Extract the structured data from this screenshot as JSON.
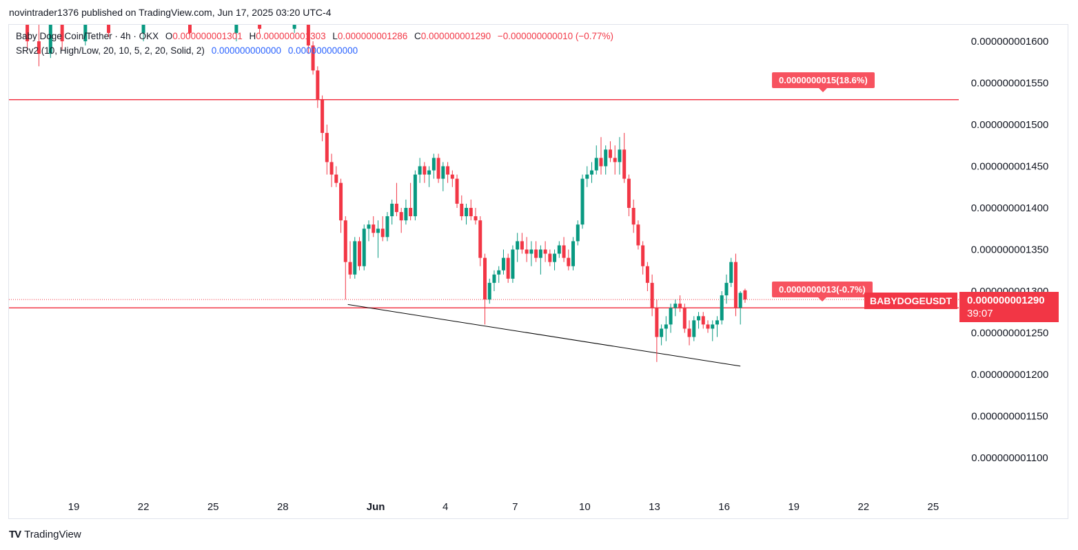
{
  "header": {
    "published_line": "novintrader1376 published on TradingView.com, Jun 17, 2025 03:20 UTC-4"
  },
  "legend": {
    "symbol_line": "Baby Doge Coin/Tether · 4h · OKX",
    "open_label": "O",
    "open_value": "0.000000001301",
    "high_label": "H",
    "high_value": "0.000000001303",
    "low_label": "L",
    "low_value": "0.000000001286",
    "close_label": "C",
    "close_value": "0.000000001290",
    "change": "−0.000000000010 (−0.77%)",
    "indicator_name": "SRv2 (10, High/Low, 20, 10, 5, 2, 20, Solid, 2)",
    "indicator_value_1": "0.000000000000",
    "indicator_value_2": "0.000000000000"
  },
  "labels": {
    "target_label": "0.0000000015(18.6%)",
    "current_label": "0.0000000013(-0.7%)",
    "symbol_tag": "BABYDOGEUSDT",
    "last_price": "0.000000001290",
    "countdown": "39:07"
  },
  "footer": {
    "brand": "TradingView"
  },
  "colors": {
    "up": "#089981",
    "down": "#f23645",
    "line": "#f23645",
    "trend": "#000000",
    "blue": "#2962ff"
  },
  "chart_data": {
    "type": "candlestick",
    "ylim": [
      1.07e-09,
      1.63e-09
    ],
    "y_ticks": [
      {
        "value": 1.6e-09,
        "label": "0.000000001600"
      },
      {
        "value": 1.55e-09,
        "label": "0.000000001550"
      },
      {
        "value": 1.5e-09,
        "label": "0.000000001500"
      },
      {
        "value": 1.45e-09,
        "label": "0.000000001450"
      },
      {
        "value": 1.4e-09,
        "label": "0.000000001400"
      },
      {
        "value": 1.35e-09,
        "label": "0.000000001350"
      },
      {
        "value": 1.3e-09,
        "label": "0.000000001300"
      },
      {
        "value": 1.25e-09,
        "label": "0.000000001250"
      },
      {
        "value": 1.2e-09,
        "label": "0.000000001200"
      },
      {
        "value": 1.15e-09,
        "label": "0.000000001150"
      },
      {
        "value": 1.1e-09,
        "label": "0.000000001100"
      }
    ],
    "x_ticks": [
      {
        "day": 19,
        "label": "19"
      },
      {
        "day": 22,
        "label": "22"
      },
      {
        "day": 25,
        "label": "25"
      },
      {
        "day": 28,
        "label": "28"
      },
      {
        "day": 32,
        "label": "Jun"
      },
      {
        "day": 35,
        "label": "4"
      },
      {
        "day": 38,
        "label": "7"
      },
      {
        "day": 41,
        "label": "10"
      },
      {
        "day": 44,
        "label": "13"
      },
      {
        "day": 47,
        "label": "16"
      },
      {
        "day": 50,
        "label": "19"
      },
      {
        "day": 53,
        "label": "22"
      },
      {
        "day": 56,
        "label": "25"
      }
    ],
    "xlim": [
      16.3,
      56.3
    ],
    "horizontal_lines": [
      {
        "name": "resistance",
        "value": 1.53e-09
      },
      {
        "name": "support",
        "value": 1.28e-09
      }
    ],
    "last_price_line": 1.29e-09,
    "trendline": {
      "start": {
        "day": 30.8,
        "value": 1.284e-09
      },
      "end": {
        "day": 47.7,
        "value": 1.21e-09
      }
    },
    "candles": [
      {
        "d": 17.0,
        "o": 1.625,
        "h": 1.63,
        "l": 1.59,
        "c": 1.6
      },
      {
        "d": 17.5,
        "o": 1.6,
        "h": 1.62,
        "l": 1.57,
        "c": 1.585
      },
      {
        "d": 18.0,
        "o": 1.585,
        "h": 1.63,
        "l": 1.58,
        "c": 1.62
      },
      {
        "d": 18.5,
        "o": 1.62,
        "h": 1.63,
        "l": 1.59,
        "c": 1.6
      },
      {
        "d": 19.5,
        "o": 1.6,
        "h": 1.63,
        "l": 1.595,
        "c": 1.625
      },
      {
        "d": 20.5,
        "o": 1.625,
        "h": 1.63,
        "l": 1.605,
        "c": 1.61
      },
      {
        "d": 22.0,
        "o": 1.61,
        "h": 1.63,
        "l": 1.6,
        "c": 1.62
      },
      {
        "d": 24.0,
        "o": 1.62,
        "h": 1.63,
        "l": 1.605,
        "c": 1.61
      },
      {
        "d": 26.0,
        "o": 1.61,
        "h": 1.63,
        "l": 1.6,
        "c": 1.625
      },
      {
        "d": 27.0,
        "o": 1.625,
        "h": 1.63,
        "l": 1.61,
        "c": 1.615
      },
      {
        "d": 28.5,
        "o": 1.615,
        "h": 1.63,
        "l": 1.61,
        "c": 1.625
      },
      {
        "d": 29.1,
        "o": 1.63,
        "h": 1.63,
        "l": 1.585,
        "c": 1.595
      },
      {
        "d": 29.3,
        "o": 1.595,
        "h": 1.6,
        "l": 1.56,
        "c": 1.565
      },
      {
        "d": 29.5,
        "o": 1.565,
        "h": 1.57,
        "l": 1.52,
        "c": 1.53
      },
      {
        "d": 29.7,
        "o": 1.53,
        "h": 1.535,
        "l": 1.48,
        "c": 1.49
      },
      {
        "d": 29.9,
        "o": 1.49,
        "h": 1.5,
        "l": 1.44,
        "c": 1.455
      },
      {
        "d": 30.1,
        "o": 1.455,
        "h": 1.465,
        "l": 1.425,
        "c": 1.44
      },
      {
        "d": 30.3,
        "o": 1.44,
        "h": 1.45,
        "l": 1.425,
        "c": 1.43
      },
      {
        "d": 30.5,
        "o": 1.43,
        "h": 1.435,
        "l": 1.37,
        "c": 1.385
      },
      {
        "d": 30.7,
        "o": 1.385,
        "h": 1.39,
        "l": 1.29,
        "c": 1.335
      },
      {
        "d": 30.9,
        "o": 1.335,
        "h": 1.36,
        "l": 1.315,
        "c": 1.32
      },
      {
        "d": 31.1,
        "o": 1.32,
        "h": 1.365,
        "l": 1.315,
        "c": 1.36
      },
      {
        "d": 31.3,
        "o": 1.36,
        "h": 1.365,
        "l": 1.325,
        "c": 1.33
      },
      {
        "d": 31.5,
        "o": 1.33,
        "h": 1.38,
        "l": 1.325,
        "c": 1.375
      },
      {
        "d": 31.7,
        "o": 1.375,
        "h": 1.385,
        "l": 1.36,
        "c": 1.38
      },
      {
        "d": 31.9,
        "o": 1.38,
        "h": 1.39,
        "l": 1.365,
        "c": 1.37
      },
      {
        "d": 32.1,
        "o": 1.37,
        "h": 1.385,
        "l": 1.34,
        "c": 1.375
      },
      {
        "d": 32.3,
        "o": 1.375,
        "h": 1.39,
        "l": 1.36,
        "c": 1.365
      },
      {
        "d": 32.5,
        "o": 1.365,
        "h": 1.395,
        "l": 1.36,
        "c": 1.39
      },
      {
        "d": 32.7,
        "o": 1.39,
        "h": 1.41,
        "l": 1.38,
        "c": 1.405
      },
      {
        "d": 32.9,
        "o": 1.405,
        "h": 1.43,
        "l": 1.39,
        "c": 1.395
      },
      {
        "d": 33.1,
        "o": 1.395,
        "h": 1.4,
        "l": 1.37,
        "c": 1.385
      },
      {
        "d": 33.3,
        "o": 1.385,
        "h": 1.41,
        "l": 1.38,
        "c": 1.4
      },
      {
        "d": 33.5,
        "o": 1.4,
        "h": 1.43,
        "l": 1.385,
        "c": 1.39
      },
      {
        "d": 33.7,
        "o": 1.39,
        "h": 1.445,
        "l": 1.385,
        "c": 1.44
      },
      {
        "d": 33.9,
        "o": 1.44,
        "h": 1.46,
        "l": 1.43,
        "c": 1.45
      },
      {
        "d": 34.1,
        "o": 1.45,
        "h": 1.455,
        "l": 1.43,
        "c": 1.44
      },
      {
        "d": 34.3,
        "o": 1.44,
        "h": 1.45,
        "l": 1.425,
        "c": 1.445
      },
      {
        "d": 34.5,
        "o": 1.445,
        "h": 1.465,
        "l": 1.435,
        "c": 1.46
      },
      {
        "d": 34.7,
        "o": 1.46,
        "h": 1.465,
        "l": 1.43,
        "c": 1.435
      },
      {
        "d": 34.9,
        "o": 1.435,
        "h": 1.455,
        "l": 1.42,
        "c": 1.45
      },
      {
        "d": 35.1,
        "o": 1.45,
        "h": 1.455,
        "l": 1.43,
        "c": 1.44
      },
      {
        "d": 35.3,
        "o": 1.44,
        "h": 1.445,
        "l": 1.425,
        "c": 1.435
      },
      {
        "d": 35.5,
        "o": 1.435,
        "h": 1.44,
        "l": 1.4,
        "c": 1.405
      },
      {
        "d": 35.7,
        "o": 1.405,
        "h": 1.415,
        "l": 1.385,
        "c": 1.39
      },
      {
        "d": 35.9,
        "o": 1.39,
        "h": 1.405,
        "l": 1.38,
        "c": 1.4
      },
      {
        "d": 36.1,
        "o": 1.4,
        "h": 1.41,
        "l": 1.385,
        "c": 1.39
      },
      {
        "d": 36.3,
        "o": 1.39,
        "h": 1.4,
        "l": 1.38,
        "c": 1.385
      },
      {
        "d": 36.5,
        "o": 1.385,
        "h": 1.39,
        "l": 1.33,
        "c": 1.34
      },
      {
        "d": 36.7,
        "o": 1.34,
        "h": 1.345,
        "l": 1.26,
        "c": 1.29
      },
      {
        "d": 36.9,
        "o": 1.29,
        "h": 1.315,
        "l": 1.285,
        "c": 1.31
      },
      {
        "d": 37.1,
        "o": 1.31,
        "h": 1.325,
        "l": 1.3,
        "c": 1.32
      },
      {
        "d": 37.3,
        "o": 1.32,
        "h": 1.33,
        "l": 1.31,
        "c": 1.325
      },
      {
        "d": 37.5,
        "o": 1.325,
        "h": 1.35,
        "l": 1.32,
        "c": 1.34
      },
      {
        "d": 37.7,
        "o": 1.34,
        "h": 1.345,
        "l": 1.31,
        "c": 1.315
      },
      {
        "d": 37.9,
        "o": 1.315,
        "h": 1.355,
        "l": 1.31,
        "c": 1.35
      },
      {
        "d": 38.1,
        "o": 1.35,
        "h": 1.37,
        "l": 1.335,
        "c": 1.36
      },
      {
        "d": 38.3,
        "o": 1.36,
        "h": 1.37,
        "l": 1.345,
        "c": 1.35
      },
      {
        "d": 38.5,
        "o": 1.35,
        "h": 1.365,
        "l": 1.335,
        "c": 1.345
      },
      {
        "d": 38.7,
        "o": 1.345,
        "h": 1.36,
        "l": 1.33,
        "c": 1.35
      },
      {
        "d": 38.9,
        "o": 1.35,
        "h": 1.36,
        "l": 1.335,
        "c": 1.34
      },
      {
        "d": 39.1,
        "o": 1.34,
        "h": 1.355,
        "l": 1.32,
        "c": 1.35
      },
      {
        "d": 39.3,
        "o": 1.35,
        "h": 1.36,
        "l": 1.335,
        "c": 1.345
      },
      {
        "d": 39.5,
        "o": 1.345,
        "h": 1.35,
        "l": 1.33,
        "c": 1.335
      },
      {
        "d": 39.7,
        "o": 1.335,
        "h": 1.35,
        "l": 1.325,
        "c": 1.345
      },
      {
        "d": 39.9,
        "o": 1.345,
        "h": 1.36,
        "l": 1.34,
        "c": 1.355
      },
      {
        "d": 40.1,
        "o": 1.355,
        "h": 1.365,
        "l": 1.335,
        "c": 1.34
      },
      {
        "d": 40.3,
        "o": 1.34,
        "h": 1.35,
        "l": 1.325,
        "c": 1.33
      },
      {
        "d": 40.5,
        "o": 1.33,
        "h": 1.365,
        "l": 1.325,
        "c": 1.36
      },
      {
        "d": 40.7,
        "o": 1.36,
        "h": 1.385,
        "l": 1.355,
        "c": 1.38
      },
      {
        "d": 40.9,
        "o": 1.38,
        "h": 1.44,
        "l": 1.375,
        "c": 1.435
      },
      {
        "d": 41.1,
        "o": 1.435,
        "h": 1.45,
        "l": 1.425,
        "c": 1.44
      },
      {
        "d": 41.3,
        "o": 1.44,
        "h": 1.455,
        "l": 1.43,
        "c": 1.445
      },
      {
        "d": 41.5,
        "o": 1.445,
        "h": 1.475,
        "l": 1.44,
        "c": 1.46
      },
      {
        "d": 41.7,
        "o": 1.46,
        "h": 1.485,
        "l": 1.44,
        "c": 1.45
      },
      {
        "d": 41.9,
        "o": 1.45,
        "h": 1.475,
        "l": 1.44,
        "c": 1.47
      },
      {
        "d": 42.1,
        "o": 1.47,
        "h": 1.48,
        "l": 1.455,
        "c": 1.46
      },
      {
        "d": 42.3,
        "o": 1.46,
        "h": 1.475,
        "l": 1.44,
        "c": 1.455
      },
      {
        "d": 42.5,
        "o": 1.455,
        "h": 1.485,
        "l": 1.44,
        "c": 1.47
      },
      {
        "d": 42.7,
        "o": 1.47,
        "h": 1.49,
        "l": 1.43,
        "c": 1.435
      },
      {
        "d": 42.9,
        "o": 1.435,
        "h": 1.44,
        "l": 1.39,
        "c": 1.4
      },
      {
        "d": 43.1,
        "o": 1.4,
        "h": 1.41,
        "l": 1.37,
        "c": 1.38
      },
      {
        "d": 43.3,
        "o": 1.38,
        "h": 1.385,
        "l": 1.35,
        "c": 1.355
      },
      {
        "d": 43.5,
        "o": 1.355,
        "h": 1.36,
        "l": 1.32,
        "c": 1.33
      },
      {
        "d": 43.7,
        "o": 1.33,
        "h": 1.335,
        "l": 1.3,
        "c": 1.31
      },
      {
        "d": 43.9,
        "o": 1.31,
        "h": 1.32,
        "l": 1.27,
        "c": 1.28
      },
      {
        "d": 44.1,
        "o": 1.28,
        "h": 1.29,
        "l": 1.215,
        "c": 1.245
      },
      {
        "d": 44.3,
        "o": 1.245,
        "h": 1.26,
        "l": 1.235,
        "c": 1.255
      },
      {
        "d": 44.5,
        "o": 1.255,
        "h": 1.27,
        "l": 1.24,
        "c": 1.26
      },
      {
        "d": 44.7,
        "o": 1.26,
        "h": 1.285,
        "l": 1.25,
        "c": 1.28
      },
      {
        "d": 44.9,
        "o": 1.28,
        "h": 1.29,
        "l": 1.27,
        "c": 1.285
      },
      {
        "d": 45.1,
        "o": 1.285,
        "h": 1.295,
        "l": 1.275,
        "c": 1.28
      },
      {
        "d": 45.3,
        "o": 1.28,
        "h": 1.285,
        "l": 1.25,
        "c": 1.255
      },
      {
        "d": 45.5,
        "o": 1.255,
        "h": 1.265,
        "l": 1.235,
        "c": 1.245
      },
      {
        "d": 45.7,
        "o": 1.245,
        "h": 1.27,
        "l": 1.24,
        "c": 1.265
      },
      {
        "d": 45.9,
        "o": 1.265,
        "h": 1.275,
        "l": 1.255,
        "c": 1.27
      },
      {
        "d": 46.1,
        "o": 1.27,
        "h": 1.275,
        "l": 1.255,
        "c": 1.26
      },
      {
        "d": 46.3,
        "o": 1.26,
        "h": 1.265,
        "l": 1.25,
        "c": 1.255
      },
      {
        "d": 46.5,
        "o": 1.255,
        "h": 1.265,
        "l": 1.24,
        "c": 1.26
      },
      {
        "d": 46.7,
        "o": 1.26,
        "h": 1.27,
        "l": 1.245,
        "c": 1.265
      },
      {
        "d": 46.9,
        "o": 1.265,
        "h": 1.3,
        "l": 1.26,
        "c": 1.295
      },
      {
        "d": 47.1,
        "o": 1.295,
        "h": 1.32,
        "l": 1.285,
        "c": 1.31
      },
      {
        "d": 47.3,
        "o": 1.31,
        "h": 1.34,
        "l": 1.305,
        "c": 1.335
      },
      {
        "d": 47.5,
        "o": 1.335,
        "h": 1.345,
        "l": 1.27,
        "c": 1.28
      },
      {
        "d": 47.7,
        "o": 1.28,
        "h": 1.3,
        "l": 1.26,
        "c": 1.298
      },
      {
        "d": 47.9,
        "o": 1.301,
        "h": 1.303,
        "l": 1.286,
        "c": 1.29
      }
    ]
  }
}
